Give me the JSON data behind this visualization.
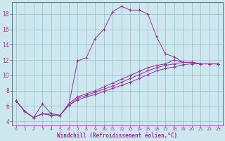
{
  "xlabel": "Windchill (Refroidissement éolien,°C)",
  "background_color": "#cce8ee",
  "line_color": "#993399",
  "grid_color": "#99bbcc",
  "xlim": [
    -0.5,
    23.5
  ],
  "ylim": [
    3.5,
    19.5
  ],
  "xticks": [
    0,
    1,
    2,
    3,
    4,
    5,
    6,
    7,
    8,
    9,
    10,
    11,
    12,
    13,
    14,
    15,
    16,
    17,
    18,
    19,
    20,
    21,
    22,
    23
  ],
  "yticks": [
    4,
    6,
    8,
    10,
    12,
    14,
    16,
    18
  ],
  "series": [
    [
      6.7,
      5.3,
      4.5,
      6.3,
      5.0,
      4.8,
      6.1,
      11.9,
      12.3,
      14.8,
      16.0,
      18.3,
      19.0,
      18.5,
      18.5,
      18.0,
      15.0,
      12.8,
      12.4,
      11.7,
      11.7,
      11.5,
      11.5,
      11.5
    ],
    [
      6.7,
      5.3,
      4.5,
      5.0,
      5.0,
      4.8,
      6.3,
      7.2,
      7.6,
      8.0,
      8.5,
      9.0,
      9.5,
      10.0,
      10.5,
      11.0,
      11.3,
      11.5,
      12.0,
      11.7,
      11.7,
      11.5,
      11.5,
      11.5
    ],
    [
      6.7,
      5.3,
      4.5,
      5.0,
      4.8,
      4.8,
      6.1,
      7.0,
      7.4,
      7.8,
      8.2,
      8.6,
      9.1,
      9.6,
      10.1,
      10.6,
      11.0,
      11.3,
      11.5,
      11.7,
      11.7,
      11.5,
      11.5,
      11.5
    ],
    [
      6.7,
      5.3,
      4.5,
      5.0,
      4.8,
      4.8,
      6.1,
      6.8,
      7.2,
      7.5,
      7.9,
      8.3,
      8.7,
      9.1,
      9.6,
      10.1,
      10.6,
      10.9,
      11.1,
      11.4,
      11.5,
      11.5,
      11.5,
      11.5
    ]
  ]
}
